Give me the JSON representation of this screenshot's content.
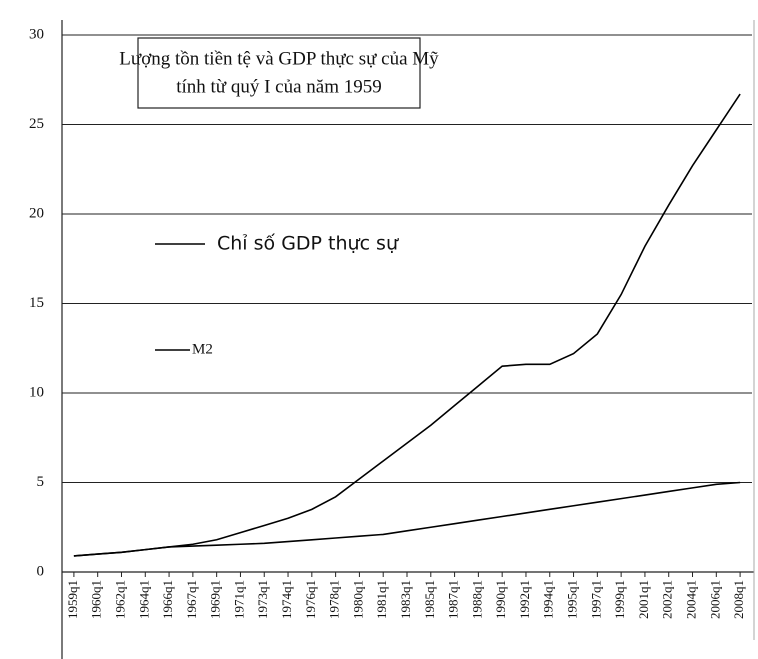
{
  "chart_data": {
    "type": "line",
    "title": [
      "Lượng tồn tiền tệ và GDP thực sự của Mỹ",
      "tính từ quý I của năm 1959"
    ],
    "categories": [
      "1959q1",
      "1960q1",
      "1962q1",
      "1964q1",
      "1966q1",
      "1967q1",
      "1969q1",
      "1971q1",
      "1973q1",
      "1974q1",
      "1976q1",
      "1978q1",
      "1980q1",
      "1981q1",
      "1983q1",
      "1985q1",
      "1987q1",
      "1988q1",
      "1990q1",
      "1992q1",
      "1994q1",
      "1995q1",
      "1997q1",
      "1999q1",
      "2001q1",
      "2002q1",
      "2004q1",
      "2006q1",
      "2008q1"
    ],
    "series": [
      {
        "name": "Chỉ số GDP thực sự",
        "color": "#000000",
        "values": [
          0.9,
          1.0,
          1.1,
          1.25,
          1.4,
          1.45,
          1.5,
          1.55,
          1.6,
          1.7,
          1.8,
          1.9,
          2.0,
          2.1,
          2.3,
          2.5,
          2.7,
          2.9,
          3.1,
          3.3,
          3.5,
          3.7,
          3.9,
          4.1,
          4.3,
          4.5,
          4.7,
          4.9,
          5.0
        ]
      },
      {
        "name": "M2",
        "color": "#000000",
        "values": [
          0.9,
          1.0,
          1.1,
          1.25,
          1.4,
          1.55,
          1.8,
          2.2,
          2.6,
          3.0,
          3.5,
          4.2,
          5.2,
          6.2,
          7.2,
          8.2,
          9.3,
          10.4,
          11.5,
          11.6,
          11.6,
          12.2,
          13.3,
          15.5,
          18.2,
          20.5,
          22.7,
          24.7,
          26.7
        ]
      }
    ],
    "ylim": [
      0,
      30
    ],
    "yticks": [
      0,
      5,
      10,
      15,
      20,
      25,
      30
    ],
    "grid": true
  }
}
